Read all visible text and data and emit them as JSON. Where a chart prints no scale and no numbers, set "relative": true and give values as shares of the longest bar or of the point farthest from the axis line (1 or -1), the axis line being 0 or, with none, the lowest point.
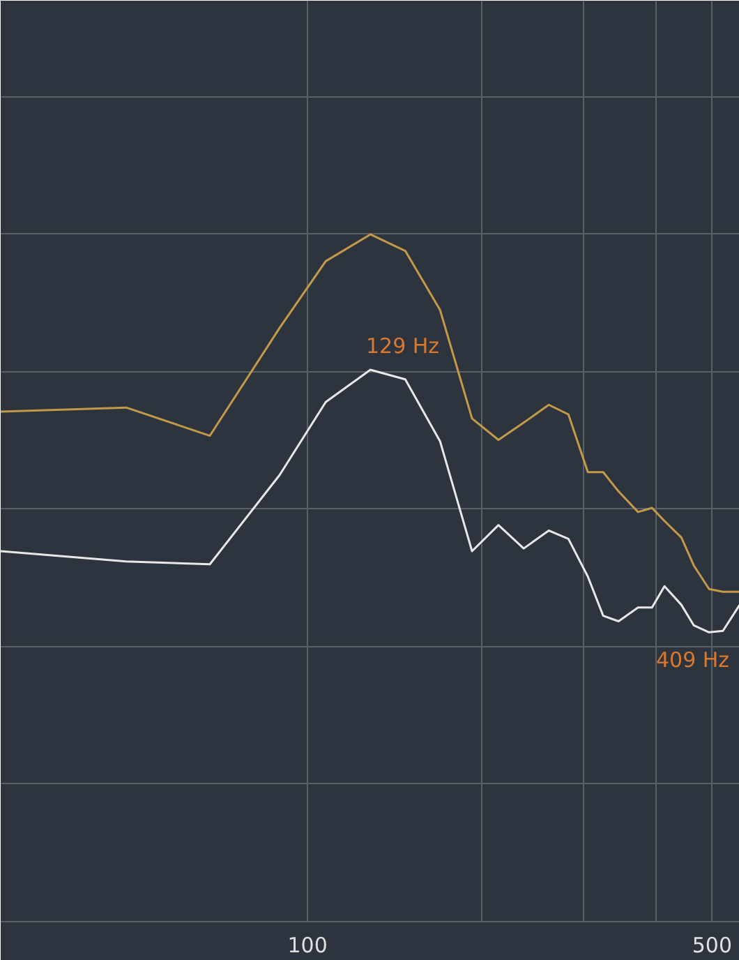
{
  "chart_data": {
    "type": "line",
    "relative": true,
    "log": "x",
    "grid": true,
    "tick_labels": "x",
    "x": [
      29.5,
      48.6,
      67.8,
      89.5,
      107.5,
      128.4,
      147.5,
      169.4,
      192.4,
      213.7,
      236.3,
      261.1,
      282.3,
      305,
      324.2,
      344.6,
      372.4,
      393.7,
      413.7,
      442.4,
      465,
      494,
      522,
      558
    ],
    "xlim": [
      29.5,
      558
    ],
    "xticks": [
      {
        "value": 100,
        "label": "100"
      },
      {
        "value": 200,
        "label": null
      },
      {
        "value": 300,
        "label": null
      },
      {
        "value": 400,
        "label": null
      },
      {
        "value": 500,
        "label": "500"
      }
    ],
    "series": [
      {
        "color": "#c29a4a",
        "values": [
          0.742,
          0.748,
          0.707,
          0.864,
          0.961,
          1.0,
          0.976,
          0.89,
          0.732,
          0.701,
          0.726,
          0.752,
          0.738,
          0.654,
          0.654,
          0.626,
          0.596,
          0.602,
          0.583,
          0.559,
          0.518,
          0.484,
          0.48,
          0.48
        ]
      },
      {
        "color": "#e8e8e8",
        "values": [
          0.539,
          0.524,
          0.52,
          0.65,
          0.756,
          0.803,
          0.789,
          0.699,
          0.539,
          0.577,
          0.543,
          0.569,
          0.557,
          0.502,
          0.445,
          0.437,
          0.457,
          0.457,
          0.488,
          0.461,
          0.431,
          0.421,
          0.423,
          0.461
        ]
      }
    ],
    "annotations": [
      {
        "text": "129 Hz",
        "x": 129,
        "y": 0.803
      },
      {
        "text": "409 Hz",
        "x": 409,
        "y": 0.488
      }
    ]
  }
}
